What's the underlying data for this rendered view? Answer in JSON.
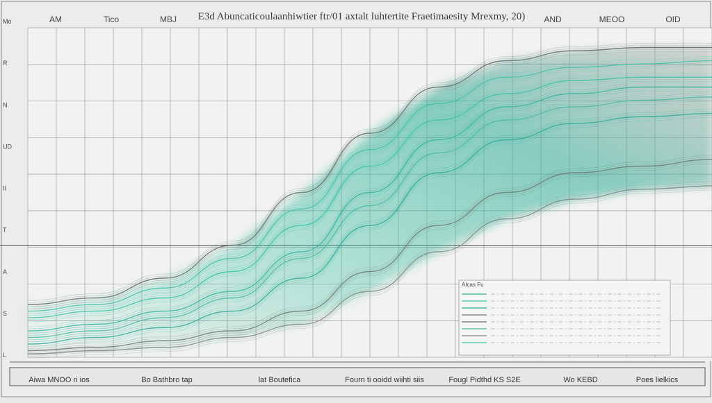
{
  "chart_data": {
    "type": "line",
    "title": "E3d Abuncaticoulaanhiwtier ftr/01 axtalt luhtertite Fraetimaesity Mrexmy, 20)",
    "top_ticks": [
      "AM",
      "Tico",
      "MBJ",
      "AND",
      "MEOO",
      "OID"
    ],
    "bottom_ticks": [
      "Aiwa MNOO ri ios",
      "Bo Bathbro tap",
      "lat Boutefica",
      "Fourn ti ooidd wiihti siis",
      "Fougl Pidthd KS S2E",
      "Wo KEBD",
      "Poes lielkics"
    ],
    "y_ticks": [
      "Mo",
      "R",
      "N",
      "UD",
      "II",
      "T",
      "A",
      "S",
      "L"
    ],
    "xlim": [
      0,
      100
    ],
    "ylim": [
      0,
      100
    ],
    "series": [
      {
        "color": "#2fb39a",
        "x": [
          0,
          10,
          20,
          30,
          40,
          50,
          60,
          70,
          80,
          90,
          100
        ],
        "y": [
          8,
          10,
          14,
          20,
          32,
          50,
          66,
          76,
          80,
          82,
          82
        ]
      },
      {
        "color": "#37c2a4",
        "x": [
          0,
          10,
          20,
          30,
          40,
          50,
          60,
          70,
          80,
          90,
          100
        ],
        "y": [
          12,
          14,
          18,
          26,
          40,
          58,
          72,
          80,
          84,
          85,
          85
        ]
      },
      {
        "color": "#2aa895",
        "x": [
          0,
          10,
          20,
          30,
          40,
          50,
          60,
          70,
          80,
          90,
          100
        ],
        "y": [
          4,
          6,
          9,
          14,
          24,
          40,
          56,
          66,
          71,
          73,
          74
        ]
      },
      {
        "color": "#6a7872",
        "x": [
          0,
          10,
          20,
          30,
          40,
          50,
          60,
          70,
          80,
          90,
          100
        ],
        "y": [
          2,
          3,
          5,
          8,
          14,
          26,
          40,
          50,
          56,
          58,
          60
        ]
      },
      {
        "color": "#5f6b66",
        "x": [
          0,
          10,
          20,
          30,
          40,
          50,
          60,
          70,
          80,
          90,
          100
        ],
        "y": [
          16,
          18,
          24,
          34,
          50,
          68,
          82,
          90,
          93,
          94,
          94
        ]
      },
      {
        "color": "#48b8a0",
        "x": [
          0,
          10,
          20,
          30,
          40,
          50,
          60,
          70,
          80,
          90,
          100
        ],
        "y": [
          6,
          8,
          12,
          18,
          30,
          46,
          62,
          72,
          76,
          78,
          79
        ]
      },
      {
        "color": "#7a8580",
        "x": [
          0,
          10,
          20,
          30,
          40,
          50,
          60,
          70,
          80,
          90,
          100
        ],
        "y": [
          1,
          2,
          3,
          6,
          10,
          20,
          32,
          42,
          48,
          51,
          52
        ]
      },
      {
        "color": "#3fbfa8",
        "x": [
          0,
          10,
          20,
          30,
          40,
          50,
          60,
          70,
          80,
          90,
          100
        ],
        "y": [
          14,
          16,
          21,
          30,
          45,
          63,
          77,
          85,
          88,
          89,
          90
        ]
      }
    ],
    "grid": true,
    "legend": {
      "position": "bottom-right",
      "title": "AIcas Fu"
    }
  }
}
